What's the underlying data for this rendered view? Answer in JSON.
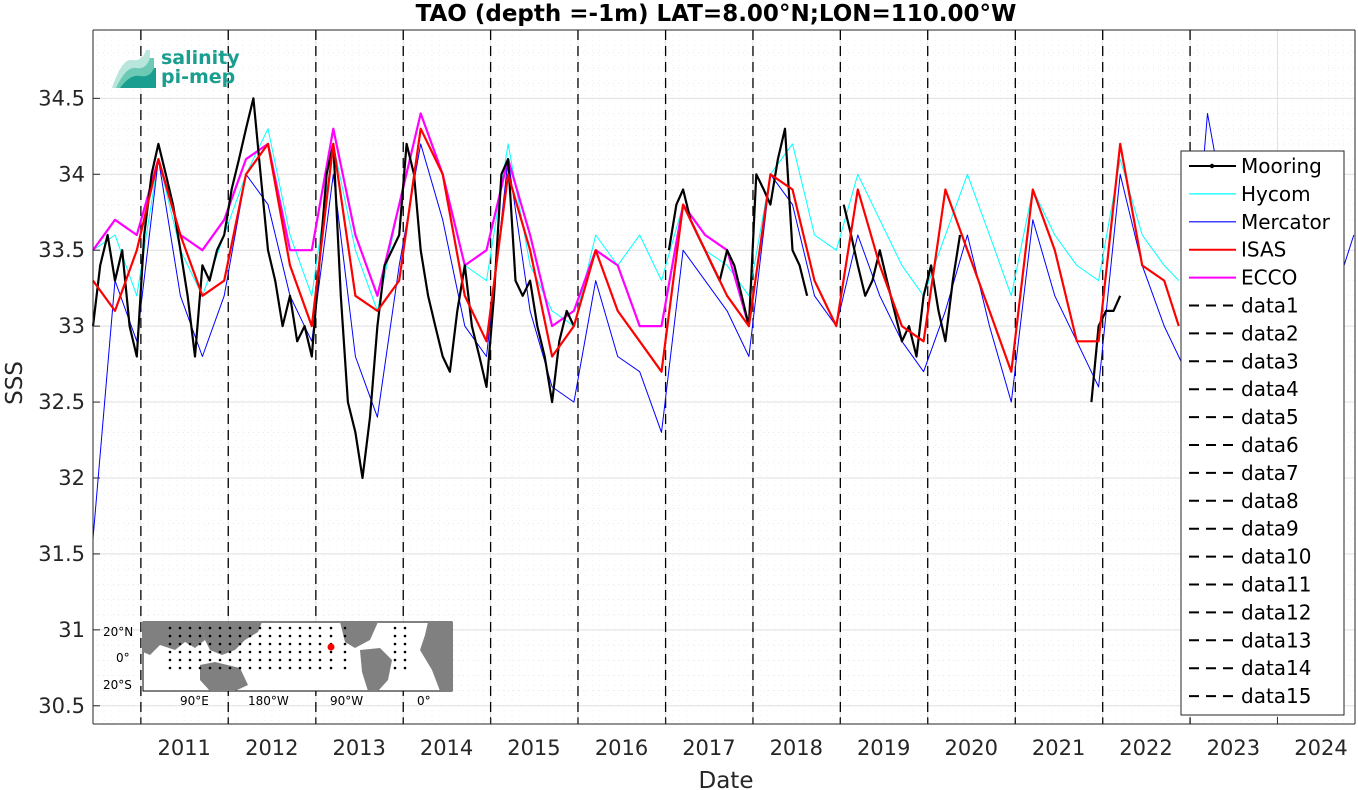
{
  "chart_data": {
    "type": "line",
    "title": "TAO (depth =-1m) LAT=8.00°N;LON=110.00°W",
    "xlabel": "Date",
    "ylabel": "SSS",
    "xlim": [
      "2010-06-15",
      "2024-11-20"
    ],
    "ylim": [
      30.38,
      34.95
    ],
    "x_ticks": [
      "2011",
      "2012",
      "2013",
      "2014",
      "2015",
      "2016",
      "2017",
      "2018",
      "2019",
      "2020",
      "2021",
      "2022",
      "2023",
      "2024"
    ],
    "y_ticks": [
      "30.5",
      "31",
      "31.5",
      "32",
      "32.5",
      "33",
      "33.5",
      "34",
      "34.5"
    ],
    "grid": true,
    "legend_position": "right",
    "vertical_markers": [
      "2011-01-01",
      "2012-01-01",
      "2013-01-01",
      "2014-01-01",
      "2015-01-01",
      "2016-01-01",
      "2017-01-01",
      "2018-01-01",
      "2019-01-01",
      "2020-01-01",
      "2021-01-01",
      "2022-01-01",
      "2023-01-01"
    ],
    "series": [
      {
        "name": "Mooring",
        "color": "#000000",
        "style": "solid-dots",
        "x": [
          "2010-06",
          "2010-07",
          "2010-08",
          "2010-09",
          "2010-10",
          "2010-11",
          "2010-12",
          "2011-01",
          "2011-02",
          "2011-03",
          "2011-04",
          "2011-05",
          "2011-06",
          "2011-07",
          "2011-08",
          "2011-09",
          "2011-10",
          "2011-11",
          "2011-12",
          "2012-01",
          "2012-02",
          "2012-03",
          "2012-04",
          "2012-05",
          "2012-06",
          "2012-07",
          "2012-08",
          "2012-09",
          "2012-10",
          "2012-11",
          "2012-12",
          "2013-01",
          "2013-02",
          "2013-03",
          "2013-04",
          "2013-05",
          "2013-06",
          "2013-07",
          "2013-08",
          "2013-09",
          "2013-10",
          "2013-11",
          "2013-12",
          "2014-01",
          "2014-02",
          "2014-03",
          "2014-04",
          "2014-05",
          "2014-06",
          "2014-07",
          "2014-08",
          "2014-09",
          "2014-10",
          "2014-11",
          "2014-12",
          "2015-01",
          "2015-02",
          "2015-03",
          "2015-04",
          "2015-05",
          "2015-06",
          "2015-07",
          "2015-08",
          "2015-09",
          "2015-10",
          "2015-11",
          "2015-12",
          "2016-01",
          "2016-02",
          "2016-03",
          "2016-04",
          "2016-05",
          "2016-06",
          "2016-07",
          "2016-08",
          "2016-09",
          "2016-10",
          "2016-11",
          "2016-12",
          "2017-01",
          "2017-02",
          "2017-03",
          "2017-04",
          "2017-05",
          "2017-06",
          "2017-07",
          "2017-08",
          "2017-09",
          "2017-10",
          "2017-11",
          "2017-12",
          "2018-01",
          "2018-02",
          "2018-03",
          "2018-04",
          "2018-05",
          "2018-06",
          "2018-07",
          "2018-08",
          "2018-09",
          "2018-10",
          "2018-11",
          "2018-12",
          "2019-01",
          "2019-02",
          "2019-03",
          "2019-04",
          "2019-05",
          "2019-06",
          "2019-07",
          "2019-08",
          "2019-09",
          "2019-10",
          "2019-11",
          "2019-12",
          "2020-01",
          "2020-02",
          "2020-03",
          "2020-04",
          "2020-05",
          "2020-06",
          "2020-07",
          "2020-08",
          "2020-09",
          "2020-10",
          "2020-11",
          "2020-12",
          "2021-01",
          "2021-02",
          "2021-03",
          "2021-04",
          "2021-05",
          "2021-06",
          "2021-07",
          "2021-08",
          "2021-09",
          "2021-10",
          "2021-11",
          "2021-12",
          "2022-01",
          "2022-02",
          "2022-03"
        ],
        "y": [
          33.0,
          33.4,
          33.6,
          33.3,
          33.5,
          33.0,
          32.8,
          33.6,
          34.0,
          34.2,
          34.0,
          33.8,
          33.5,
          33.2,
          32.8,
          33.4,
          33.3,
          33.5,
          33.6,
          33.9,
          34.1,
          34.3,
          34.5,
          34.0,
          33.5,
          33.3,
          33.0,
          33.2,
          32.9,
          33.0,
          32.8,
          33.4,
          34.0,
          34.2,
          33.2,
          32.5,
          32.3,
          32.0,
          32.4,
          33.0,
          33.4,
          33.5,
          33.6,
          34.2,
          34.0,
          33.5,
          33.2,
          33.0,
          32.8,
          32.7,
          33.1,
          33.4,
          33.0,
          32.8,
          32.6,
          33.2,
          34.0,
          34.1,
          33.3,
          33.2,
          33.3,
          33.0,
          32.8,
          32.5,
          32.9,
          33.1,
          33.0,
          null,
          null,
          null,
          null,
          null,
          null,
          null,
          null,
          null,
          null,
          null,
          null,
          33.5,
          33.8,
          33.9,
          33.7,
          33.6,
          33.5,
          33.4,
          33.3,
          33.5,
          33.4,
          33.2,
          33.0,
          34.0,
          33.9,
          33.8,
          34.1,
          34.3,
          33.5,
          33.4,
          33.2,
          null,
          null,
          null,
          null,
          33.8,
          33.6,
          33.4,
          33.2,
          33.3,
          33.5,
          33.3,
          33.1,
          32.9,
          33.0,
          32.8,
          33.2,
          33.4,
          33.1,
          32.9,
          33.3,
          33.6,
          null,
          null,
          null,
          null,
          null,
          null,
          null,
          null,
          null,
          null,
          null,
          null,
          null,
          null,
          null,
          null,
          null,
          32.5,
          33.0,
          33.1,
          33.1,
          33.2
        ]
      },
      {
        "name": "Hycom",
        "color": "#00ffff",
        "style": "solid-thin",
        "x": [
          "2010-06",
          "2010-09",
          "2010-12",
          "2011-03",
          "2011-06",
          "2011-09",
          "2011-12",
          "2012-03",
          "2012-06",
          "2012-09",
          "2012-12",
          "2013-03",
          "2013-06",
          "2013-09",
          "2013-12",
          "2014-03",
          "2014-06",
          "2014-09",
          "2014-12",
          "2015-03",
          "2015-06",
          "2015-09",
          "2015-12",
          "2016-03",
          "2016-06",
          "2016-09",
          "2016-12",
          "2017-03",
          "2017-06",
          "2017-09",
          "2017-12",
          "2018-03",
          "2018-06",
          "2018-09",
          "2018-12",
          "2019-03",
          "2019-06",
          "2019-09",
          "2019-12",
          "2020-03",
          "2020-06",
          "2020-09",
          "2020-12",
          "2021-03",
          "2021-06",
          "2021-09",
          "2021-12",
          "2022-03",
          "2022-06",
          "2022-09",
          "2022-11"
        ],
        "y": [
          33.5,
          33.6,
          33.2,
          34.1,
          33.5,
          33.2,
          33.6,
          34.0,
          34.3,
          33.6,
          33.2,
          34.2,
          33.5,
          33.1,
          33.8,
          34.4,
          34.0,
          33.4,
          33.3,
          34.2,
          33.4,
          33.1,
          33.0,
          33.6,
          33.4,
          33.6,
          33.3,
          33.8,
          33.5,
          33.4,
          33.2,
          34.0,
          34.2,
          33.6,
          33.5,
          34.0,
          33.7,
          33.4,
          33.2,
          33.6,
          34.0,
          33.6,
          33.2,
          33.9,
          33.6,
          33.4,
          33.3,
          34.1,
          33.6,
          33.4,
          33.3
        ]
      },
      {
        "name": "Mercator",
        "color": "#0000ff",
        "style": "solid-thin",
        "x": [
          "2010-06",
          "2010-09",
          "2010-12",
          "2011-03",
          "2011-06",
          "2011-09",
          "2011-12",
          "2012-03",
          "2012-06",
          "2012-09",
          "2012-12",
          "2013-03",
          "2013-06",
          "2013-09",
          "2013-12",
          "2014-03",
          "2014-06",
          "2014-09",
          "2014-12",
          "2015-03",
          "2015-06",
          "2015-09",
          "2015-12",
          "2016-03",
          "2016-06",
          "2016-09",
          "2016-12",
          "2017-03",
          "2017-06",
          "2017-09",
          "2017-12",
          "2018-03",
          "2018-06",
          "2018-09",
          "2018-12",
          "2019-03",
          "2019-06",
          "2019-09",
          "2019-12",
          "2020-03",
          "2020-06",
          "2020-09",
          "2020-12",
          "2021-03",
          "2021-06",
          "2021-09",
          "2021-12",
          "2022-03",
          "2022-06",
          "2022-09",
          "2022-12",
          "2023-03",
          "2023-06",
          "2023-09",
          "2023-12",
          "2024-03",
          "2024-06",
          "2024-09",
          "2024-11"
        ],
        "y": [
          31.6,
          33.3,
          32.9,
          34.1,
          33.2,
          32.8,
          33.2,
          34.0,
          33.8,
          33.2,
          32.9,
          34.0,
          32.8,
          32.4,
          33.4,
          34.2,
          33.7,
          33.0,
          32.8,
          34.1,
          33.1,
          32.6,
          32.5,
          33.3,
          32.8,
          32.7,
          32.3,
          33.5,
          33.3,
          33.1,
          32.8,
          34.0,
          33.8,
          33.2,
          33.0,
          33.6,
          33.2,
          32.9,
          32.7,
          33.1,
          33.6,
          33.0,
          32.5,
          33.7,
          33.2,
          32.9,
          32.6,
          34.0,
          33.4,
          33.0,
          32.7,
          34.4,
          33.6,
          33.4,
          33.6,
          34.1,
          33.5,
          33.3,
          33.6
        ]
      },
      {
        "name": "ISAS",
        "color": "#ff0000",
        "style": "solid-thick",
        "x": [
          "2010-06",
          "2010-09",
          "2010-12",
          "2011-03",
          "2011-06",
          "2011-09",
          "2011-12",
          "2012-03",
          "2012-06",
          "2012-09",
          "2012-12",
          "2013-03",
          "2013-06",
          "2013-09",
          "2013-12",
          "2014-03",
          "2014-06",
          "2014-09",
          "2014-12",
          "2015-03",
          "2015-06",
          "2015-09",
          "2015-12",
          "2016-03",
          "2016-06",
          "2016-09",
          "2016-12",
          "2017-03",
          "2017-06",
          "2017-09",
          "2017-12",
          "2018-03",
          "2018-06",
          "2018-09",
          "2018-12",
          "2019-03",
          "2019-06",
          "2019-09",
          "2019-12",
          "2020-03",
          "2020-06",
          "2020-09",
          "2020-12",
          "2021-03",
          "2021-06",
          "2021-09",
          "2021-12",
          "2022-03",
          "2022-06",
          "2022-09",
          "2022-11"
        ],
        "y": [
          33.3,
          33.1,
          33.5,
          34.1,
          33.6,
          33.2,
          33.3,
          34.0,
          34.2,
          33.4,
          33.0,
          34.2,
          33.2,
          33.1,
          33.3,
          34.3,
          34.0,
          33.2,
          32.9,
          34.0,
          33.5,
          32.8,
          33.0,
          33.5,
          33.1,
          32.9,
          32.7,
          33.8,
          33.5,
          33.2,
          33.0,
          34.0,
          33.9,
          33.3,
          33.0,
          33.9,
          33.4,
          33.0,
          32.9,
          33.9,
          33.5,
          33.1,
          32.7,
          33.9,
          33.5,
          32.9,
          32.9,
          34.2,
          33.4,
          33.3,
          33.0
        ]
      },
      {
        "name": "ECCO",
        "color": "#ff00ff",
        "style": "solid-thick",
        "x": [
          "2010-06",
          "2010-09",
          "2010-12",
          "2011-03",
          "2011-06",
          "2011-09",
          "2011-12",
          "2012-03",
          "2012-06",
          "2012-09",
          "2012-12",
          "2013-03",
          "2013-06",
          "2013-09",
          "2013-12",
          "2014-03",
          "2014-06",
          "2014-09",
          "2014-12",
          "2015-03",
          "2015-06",
          "2015-09",
          "2015-12",
          "2016-03",
          "2016-06",
          "2016-09",
          "2016-12",
          "2017-03",
          "2017-06",
          "2017-09",
          "2017-12"
        ],
        "y": [
          33.5,
          33.7,
          33.6,
          34.1,
          33.6,
          33.5,
          33.7,
          34.1,
          34.2,
          33.5,
          33.5,
          34.3,
          33.6,
          33.2,
          33.8,
          34.4,
          34.0,
          33.4,
          33.5,
          34.1,
          33.6,
          33.0,
          33.1,
          33.5,
          33.4,
          33.0,
          33.0,
          33.8,
          33.6,
          33.5,
          33.0
        ]
      },
      {
        "name": "data1",
        "color": "#000000",
        "style": "dashed"
      },
      {
        "name": "data2",
        "color": "#000000",
        "style": "dashed"
      },
      {
        "name": "data3",
        "color": "#000000",
        "style": "dashed"
      },
      {
        "name": "data4",
        "color": "#000000",
        "style": "dashed"
      },
      {
        "name": "data5",
        "color": "#000000",
        "style": "dashed"
      },
      {
        "name": "data6",
        "color": "#000000",
        "style": "dashed"
      },
      {
        "name": "data7",
        "color": "#000000",
        "style": "dashed"
      },
      {
        "name": "data8",
        "color": "#000000",
        "style": "dashed"
      },
      {
        "name": "data9",
        "color": "#000000",
        "style": "dashed"
      },
      {
        "name": "data10",
        "color": "#000000",
        "style": "dashed"
      },
      {
        "name": "data11",
        "color": "#000000",
        "style": "dashed"
      },
      {
        "name": "data12",
        "color": "#000000",
        "style": "dashed"
      },
      {
        "name": "data13",
        "color": "#000000",
        "style": "dashed"
      },
      {
        "name": "data14",
        "color": "#000000",
        "style": "dashed"
      },
      {
        "name": "data15",
        "color": "#000000",
        "style": "dashed"
      }
    ]
  },
  "logo": {
    "line1": "salinity",
    "line2": "pi-mep",
    "color": "#1a9e8f"
  },
  "inset_map": {
    "y_labels": [
      "20°N",
      "0°",
      "20°S"
    ],
    "x_labels": [
      "90°E",
      "180°W",
      "90°W",
      "0°"
    ],
    "marker_color": "#ff0000",
    "land_color": "#808080"
  }
}
